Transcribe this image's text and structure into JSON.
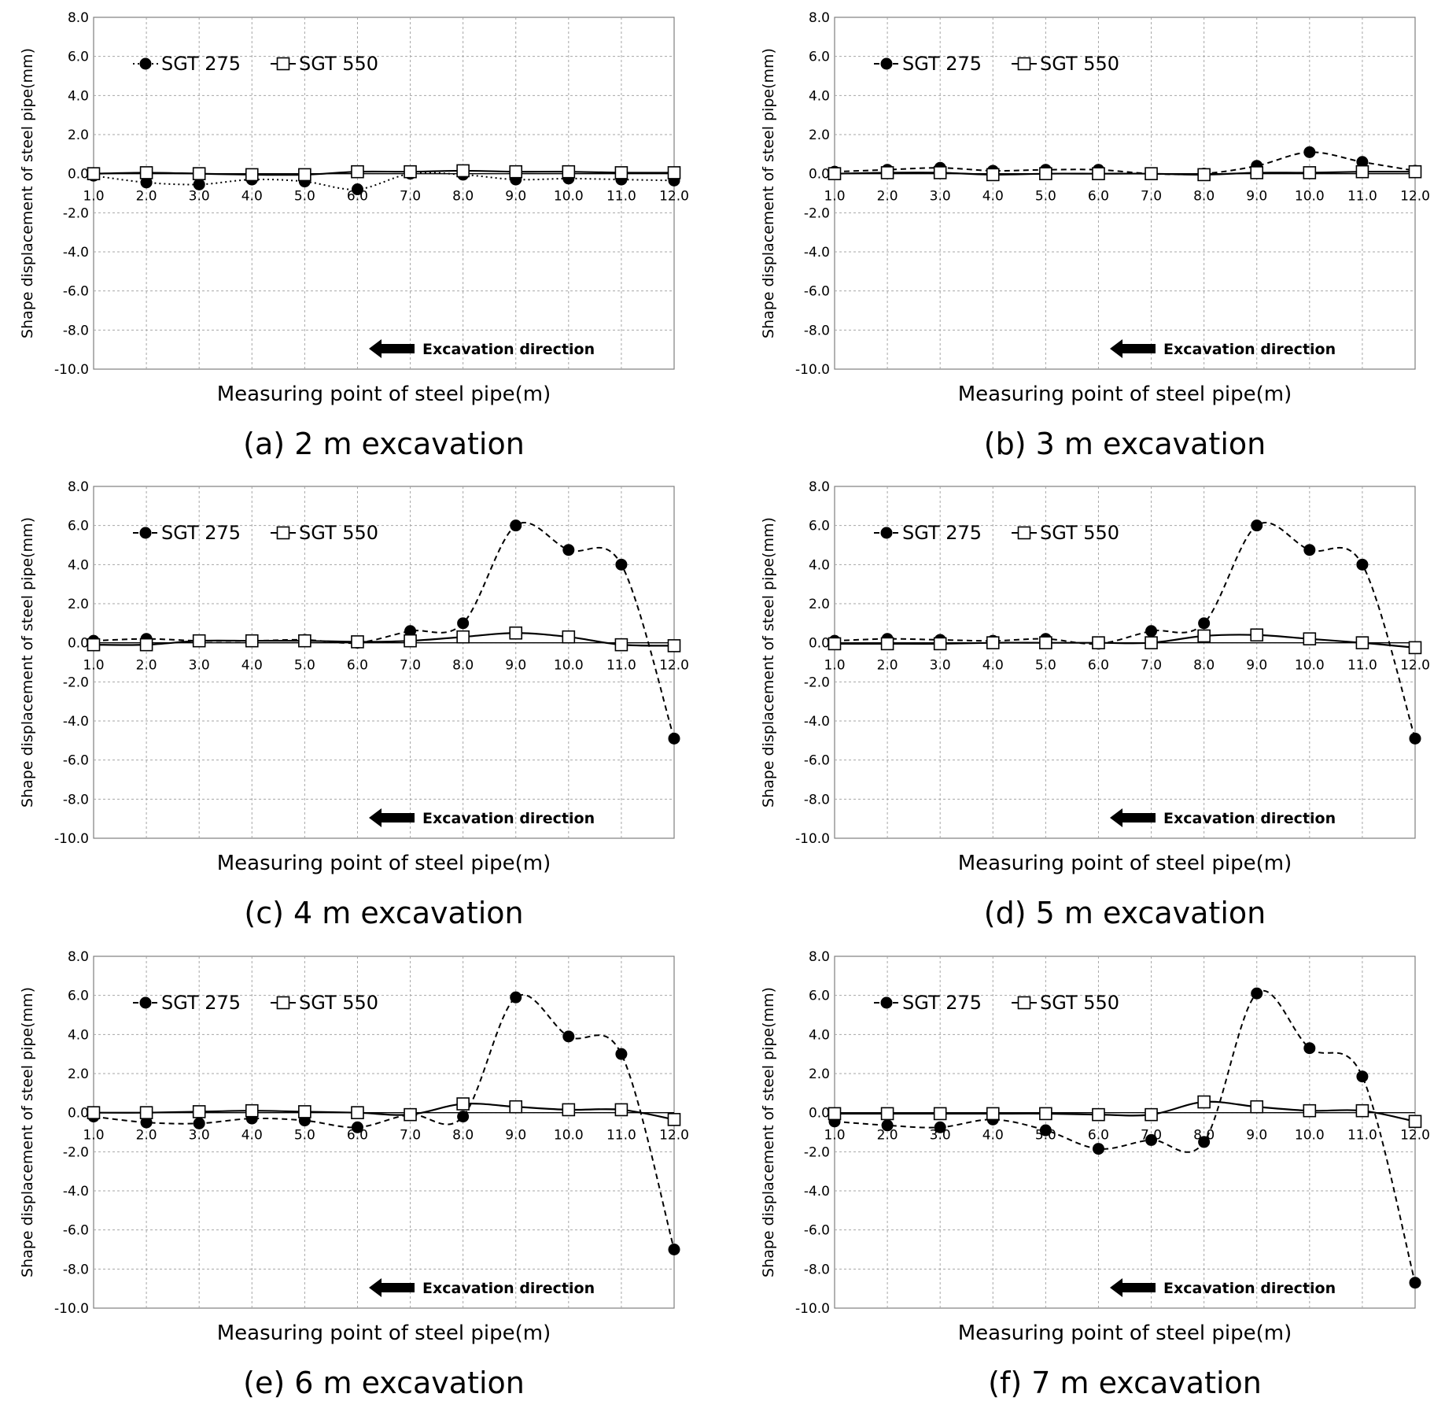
{
  "figure": {
    "common": {
      "x": [
        1.0,
        2.0,
        3.0,
        4.0,
        5.0,
        6.0,
        7.0,
        8.0,
        9.0,
        10.0,
        11.0,
        12.0
      ],
      "x_tick_labels": [
        "1.0",
        "2.0",
        "3.0",
        "4.0",
        "5.0",
        "6.0",
        "7.0",
        "8.0",
        "9.0",
        "10.0",
        "11.0",
        "12.0"
      ],
      "y_tick_labels": [
        "8.0",
        "6.0",
        "4.0",
        "2.0",
        "0.0",
        "-2.0",
        "-4.0",
        "-6.0",
        "-8.0",
        "-10.0"
      ],
      "ylim": [
        -10,
        8
      ],
      "xlabel": "Measuring point of steel pipe(m)",
      "ylabel": "Shape displacement of steel pipe(mm)",
      "annotation": "Excavation direction",
      "series_names": [
        "SGT 275",
        "SGT 550"
      ],
      "colors": {
        "line": "#000000",
        "grid": "#a6a6a6",
        "marker_fill_open": "#ffffff"
      }
    }
  },
  "chart_data": [
    {
      "type": "line",
      "caption": "(a) 2 m excavation",
      "xlabel": "Measuring point of steel pipe(m)",
      "ylabel": "Shape displacement of steel pipe(mm)",
      "ylim": [
        -10,
        8
      ],
      "grid": true,
      "legend": "top-left",
      "x": [
        1,
        2,
        3,
        4,
        5,
        6,
        7,
        8,
        9,
        10,
        11,
        12
      ],
      "series": [
        {
          "name": "SGT 275",
          "marker": "filled-circle",
          "style": "dotted",
          "values": [
            -0.1,
            -0.45,
            -0.55,
            -0.3,
            -0.4,
            -0.8,
            0.0,
            -0.05,
            -0.3,
            -0.25,
            -0.3,
            -0.35
          ]
        },
        {
          "name": "SGT 550",
          "marker": "open-square",
          "style": "solid",
          "values": [
            0.0,
            0.05,
            0.0,
            -0.05,
            -0.05,
            0.1,
            0.1,
            0.15,
            0.1,
            0.1,
            0.05,
            0.05
          ]
        }
      ],
      "annotation": "Excavation direction"
    },
    {
      "type": "line",
      "caption": "(b) 3 m excavation",
      "xlabel": "Measuring point of steel pipe(m)",
      "ylabel": "Shape displacement of steel pipe(mm)",
      "ylim": [
        -10,
        8
      ],
      "grid": true,
      "legend": "top-left",
      "x": [
        1,
        2,
        3,
        4,
        5,
        6,
        7,
        8,
        9,
        10,
        11,
        12
      ],
      "series": [
        {
          "name": "SGT 275",
          "marker": "filled-circle",
          "style": "dashed",
          "values": [
            0.1,
            0.2,
            0.3,
            0.15,
            0.2,
            0.2,
            0.0,
            0.0,
            0.4,
            1.1,
            0.6,
            0.15
          ]
        },
        {
          "name": "SGT 550",
          "marker": "open-square",
          "style": "solid",
          "values": [
            0.0,
            0.05,
            0.05,
            -0.05,
            0.0,
            0.0,
            0.0,
            -0.05,
            0.05,
            0.05,
            0.1,
            0.1
          ]
        }
      ],
      "annotation": "Excavation direction"
    },
    {
      "type": "line",
      "caption": "(c) 4 m excavation",
      "xlabel": "Measuring point of steel pipe(m)",
      "ylabel": "Shape displacement of steel pipe(mm)",
      "ylim": [
        -10,
        8
      ],
      "grid": true,
      "legend": "top-left",
      "x": [
        1,
        2,
        3,
        4,
        5,
        6,
        7,
        8,
        9,
        10,
        11,
        12
      ],
      "series": [
        {
          "name": "SGT 275",
          "marker": "filled-circle",
          "style": "dashed",
          "values": [
            0.1,
            0.2,
            0.1,
            0.1,
            0.15,
            0.0,
            0.6,
            1.0,
            6.0,
            4.75,
            4.0,
            -4.9
          ]
        },
        {
          "name": "SGT 550",
          "marker": "open-square",
          "style": "solid",
          "values": [
            -0.1,
            -0.1,
            0.1,
            0.1,
            0.1,
            0.05,
            0.1,
            0.3,
            0.5,
            0.3,
            -0.1,
            -0.15
          ]
        }
      ],
      "annotation": "Excavation direction"
    },
    {
      "type": "line",
      "caption": "(d) 5 m excavation",
      "xlabel": "Measuring point of steel pipe(m)",
      "ylabel": "Shape displacement of steel pipe(mm)",
      "ylim": [
        -10,
        8
      ],
      "grid": true,
      "legend": "top-left",
      "x": [
        1,
        2,
        3,
        4,
        5,
        6,
        7,
        8,
        9,
        10,
        11,
        12
      ],
      "series": [
        {
          "name": "SGT 275",
          "marker": "filled-circle",
          "style": "dashed",
          "values": [
            0.1,
            0.2,
            0.15,
            0.1,
            0.2,
            -0.05,
            0.6,
            1.0,
            6.0,
            4.75,
            4.0,
            -4.9
          ]
        },
        {
          "name": "SGT 550",
          "marker": "open-square",
          "style": "solid",
          "values": [
            -0.05,
            -0.05,
            -0.05,
            0.0,
            0.0,
            0.0,
            0.0,
            0.35,
            0.4,
            0.2,
            0.0,
            -0.25
          ]
        }
      ],
      "annotation": "Excavation direction"
    },
    {
      "type": "line",
      "caption": "(e) 6 m excavation",
      "xlabel": "Measuring point of steel pipe(m)",
      "ylabel": "Shape displacement of steel pipe(mm)",
      "ylim": [
        -10,
        8
      ],
      "grid": true,
      "legend": "top-left",
      "x": [
        1,
        2,
        3,
        4,
        5,
        6,
        7,
        8,
        9,
        10,
        11,
        12
      ],
      "series": [
        {
          "name": "SGT 275",
          "marker": "filled-circle",
          "style": "dashed",
          "values": [
            -0.2,
            -0.5,
            -0.55,
            -0.3,
            -0.4,
            -0.75,
            -0.1,
            -0.2,
            5.9,
            3.9,
            3.0,
            -7.0
          ]
        },
        {
          "name": "SGT 550",
          "marker": "open-square",
          "style": "solid",
          "values": [
            0.0,
            0.0,
            0.05,
            0.1,
            0.05,
            0.0,
            -0.1,
            0.45,
            0.3,
            0.15,
            0.15,
            -0.35
          ]
        }
      ],
      "annotation": "Excavation direction"
    },
    {
      "type": "line",
      "caption": "(f) 7 m excavation",
      "xlabel": "Measuring point of steel pipe(m)",
      "ylabel": "Shape displacement of steel pipe(mm)",
      "ylim": [
        -10,
        8
      ],
      "grid": true,
      "legend": "top-left",
      "x": [
        1,
        2,
        3,
        4,
        5,
        6,
        7,
        8,
        9,
        10,
        11,
        12
      ],
      "series": [
        {
          "name": "SGT 275",
          "marker": "filled-circle",
          "style": "dashed",
          "values": [
            -0.45,
            -0.65,
            -0.75,
            -0.35,
            -0.9,
            -1.85,
            -1.4,
            -1.5,
            6.1,
            3.3,
            1.85,
            -8.7
          ]
        },
        {
          "name": "SGT 550",
          "marker": "open-square",
          "style": "solid",
          "values": [
            -0.05,
            -0.05,
            -0.05,
            -0.05,
            -0.05,
            -0.1,
            -0.1,
            0.55,
            0.3,
            0.1,
            0.1,
            -0.45
          ]
        }
      ],
      "annotation": "Excavation direction"
    }
  ]
}
